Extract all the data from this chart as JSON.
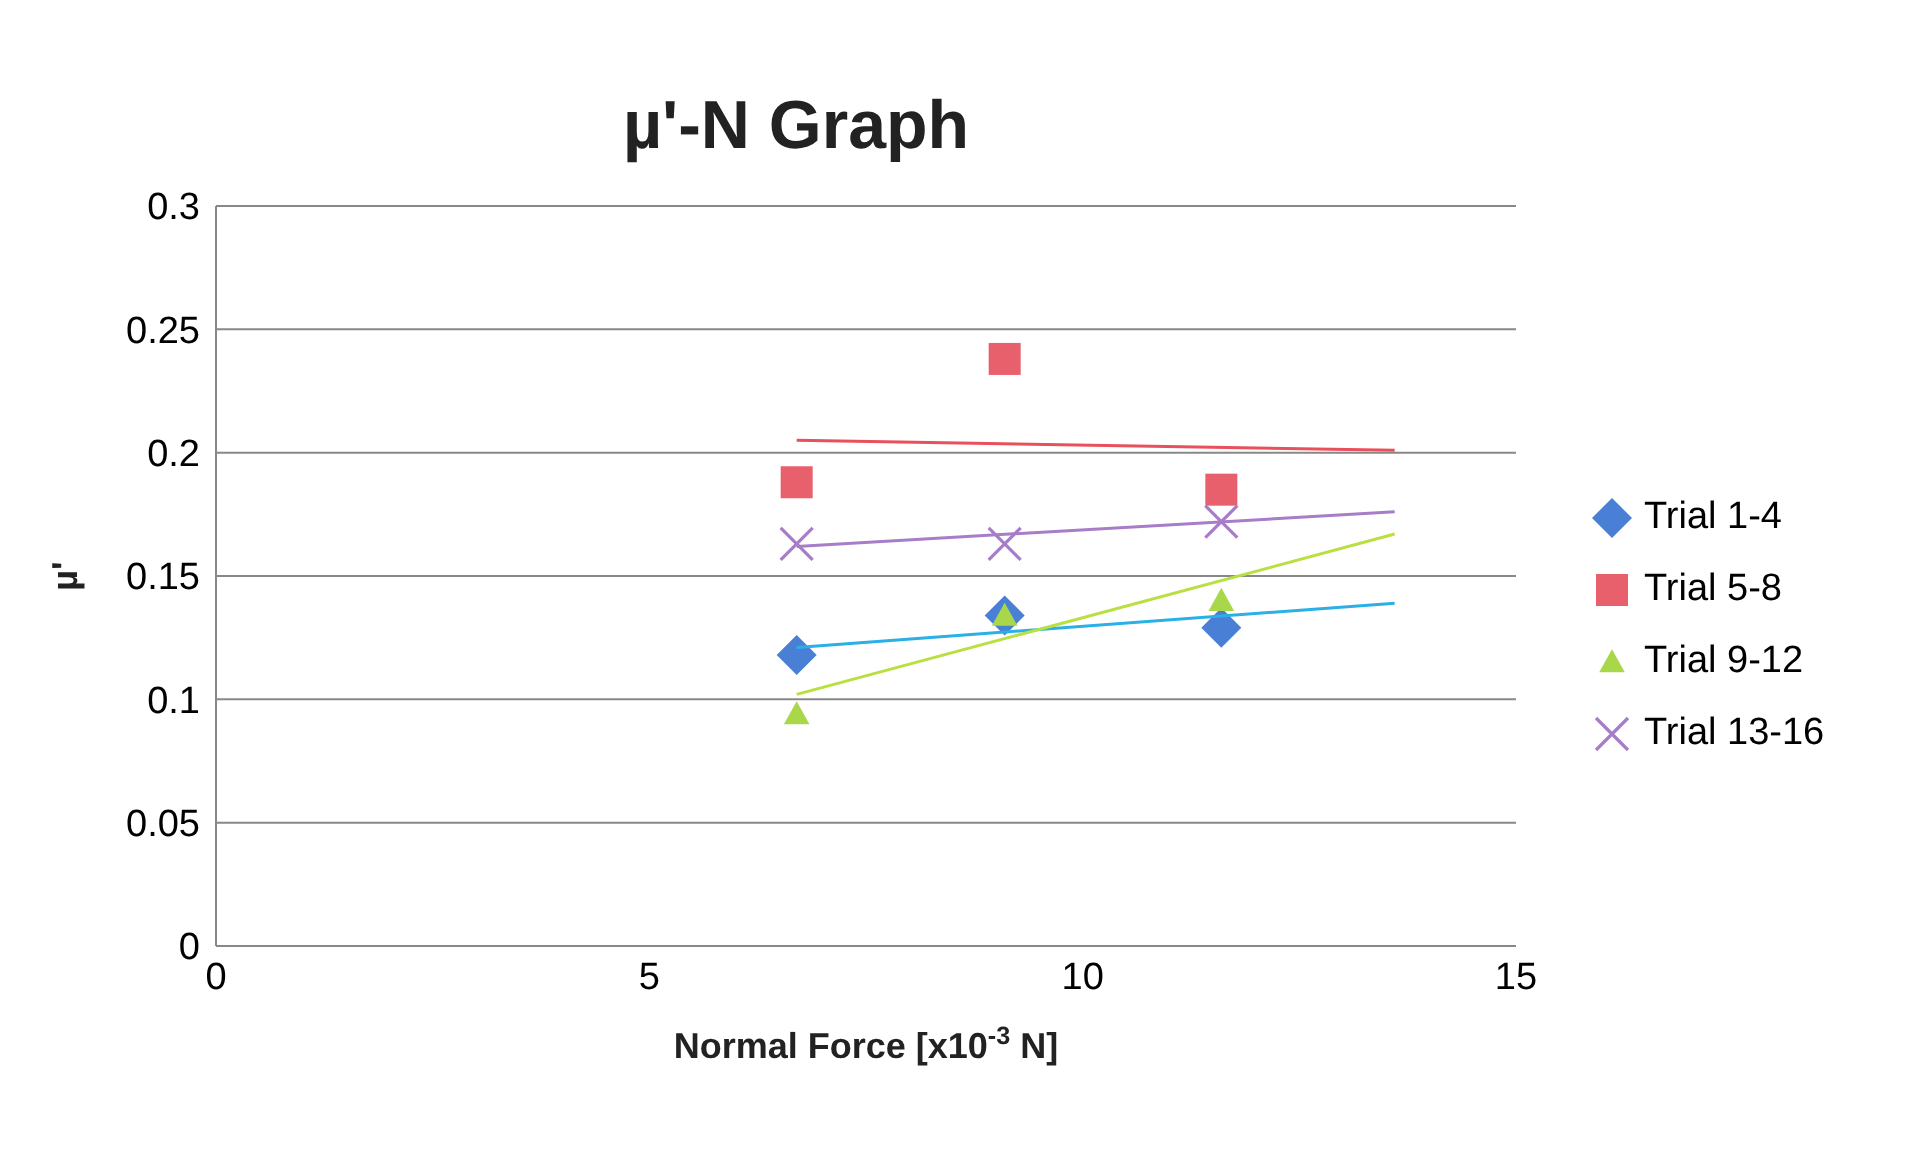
{
  "chart_data": {
    "type": "scatter",
    "title": "µ'-N Graph",
    "xlabel": "Normal Force [x10$^{-3}$ N]",
    "ylabel": "µ'",
    "xlim": [
      0,
      15
    ],
    "xticks": [
      0,
      5,
      10,
      15
    ],
    "ylim": [
      0,
      0.3
    ],
    "yticks": [
      0,
      0.05,
      0.1,
      0.15,
      0.2,
      0.25,
      0.3
    ],
    "grid": "y",
    "legend": "right",
    "series": [
      {
        "name": "Trial 1-4",
        "color": "#4a7fd6",
        "marker": "diamond",
        "x": [
          6.7,
          9.1,
          11.6
        ],
        "values": [
          0.118,
          0.134,
          0.129
        ]
      },
      {
        "name": "Trial 5-8",
        "color": "#e8606c",
        "marker": "square",
        "x": [
          6.7,
          9.1,
          11.6
        ],
        "values": [
          0.188,
          0.238,
          0.185
        ]
      },
      {
        "name": "Trial 9-12",
        "color": "#a8d84a",
        "marker": "triangle",
        "x": [
          6.7,
          9.1,
          11.6
        ],
        "values": [
          0.094,
          0.134,
          0.14
        ]
      },
      {
        "name": "Trial 13-16",
        "color": "#a77cc8",
        "marker": "cross",
        "x": [
          6.7,
          9.1,
          11.6
        ],
        "values": [
          0.163,
          0.163,
          0.172
        ]
      },
      {
        "type": "line",
        "color": "#2ab0e6",
        "marker": "none",
        "x": [
          6.7,
          13.6
        ],
        "values": [
          0.121,
          0.139
        ]
      },
      {
        "type": "line",
        "color": "#e8505c",
        "marker": "none",
        "x": [
          6.7,
          13.6
        ],
        "values": [
          0.205,
          0.201
        ]
      },
      {
        "type": "line",
        "color": "#b8e040",
        "marker": "none",
        "x": [
          6.7,
          13.6
        ],
        "values": [
          0.102,
          0.167
        ]
      },
      {
        "type": "line",
        "color": "#a77cc8",
        "marker": "none",
        "x": [
          6.7,
          13.6
        ],
        "values": [
          0.162,
          0.176
        ]
      }
    ]
  }
}
